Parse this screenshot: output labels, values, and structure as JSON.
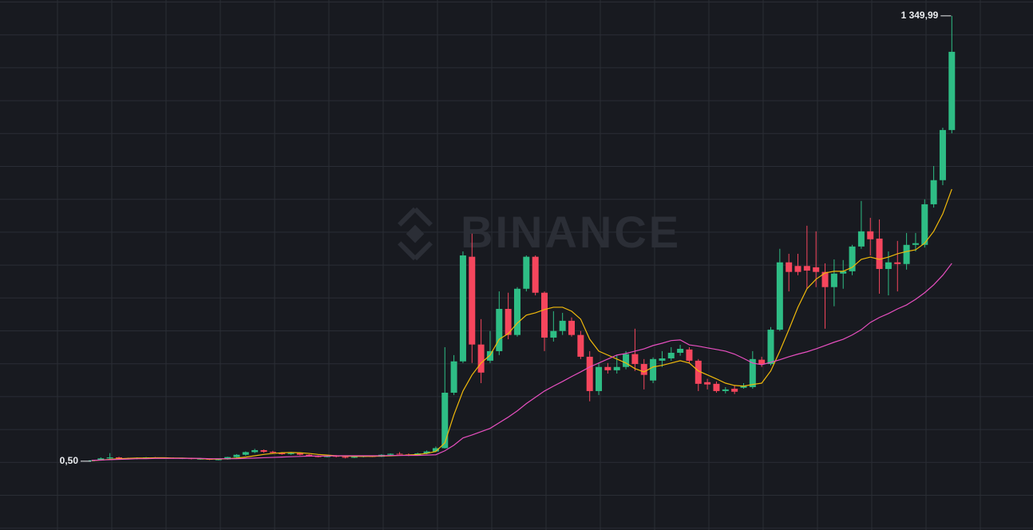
{
  "chart_data": {
    "type": "candlestick",
    "watermark": "BINANCE",
    "open": [
      1,
      3,
      9,
      12,
      9,
      8,
      11,
      12,
      10,
      11,
      9,
      10,
      7,
      8,
      5,
      6,
      13,
      20,
      28,
      34,
      29,
      26,
      22,
      25,
      20,
      16,
      13,
      17,
      14,
      11,
      14,
      16,
      14,
      20,
      23,
      21,
      18,
      24,
      30,
      40,
      208,
      303,
      620,
      354,
      305,
      334,
      462,
      383,
      523,
      620,
      511,
      375,
      395,
      426,
      383,
      317,
      213,
      286,
      276,
      286,
      325,
      295,
      245,
      305,
      312,
      329,
      339,
      305,
      240,
      235,
      213,
      220,
      223,
      225,
      308,
      295,
      399,
      603,
      592,
      592,
      588,
      574,
      528,
      569,
      576,
      651,
      697,
      675,
      583,
      603,
      598,
      656,
      656,
      779,
      852,
      1004
    ],
    "high": [
      4,
      12,
      25,
      14,
      11,
      12,
      13,
      13,
      12,
      12,
      11,
      11,
      9,
      9,
      7,
      14,
      22,
      30,
      38,
      36,
      32,
      28,
      27,
      27,
      22,
      18,
      18,
      19,
      16,
      15,
      17,
      18,
      22,
      24,
      28,
      24,
      26,
      33,
      45,
      346,
      322,
      636,
      690,
      431,
      395,
      515,
      511,
      528,
      624,
      624,
      515,
      455,
      450,
      436,
      395,
      334,
      298,
      298,
      322,
      334,
      402,
      310,
      315,
      334,
      346,
      353,
      346,
      310,
      250,
      242,
      225,
      230,
      237,
      334,
      317,
      407,
      644,
      629,
      629,
      714,
      697,
      600,
      612,
      610,
      656,
      789,
      738,
      733,
      636,
      668,
      692,
      692,
      794,
      895,
      1011,
      1349.99
    ],
    "low": [
      0.5,
      2,
      6,
      7,
      6,
      6,
      8,
      9,
      8,
      8,
      7,
      6,
      5,
      4,
      3,
      5,
      11,
      17,
      25,
      26,
      24,
      20,
      20,
      18,
      14,
      12,
      12,
      12,
      9,
      10,
      12,
      13,
      13,
      18,
      20,
      16,
      17,
      22,
      28,
      39,
      201,
      298,
      298,
      237,
      298,
      322,
      370,
      378,
      515,
      503,
      334,
      363,
      383,
      378,
      310,
      182,
      201,
      266,
      266,
      279,
      274,
      218,
      237,
      286,
      305,
      320,
      298,
      213,
      218,
      208,
      206,
      204,
      220,
      220,
      286,
      291,
      395,
      515,
      564,
      523,
      528,
      402,
      470,
      523,
      564,
      644,
      624,
      508,
      503,
      515,
      581,
      636,
      648,
      769,
      837,
      994
    ],
    "close": [
      3,
      9,
      12,
      9,
      8,
      11,
      12,
      10,
      11,
      9,
      10,
      7,
      8,
      5,
      6,
      13,
      20,
      28,
      34,
      29,
      26,
      22,
      25,
      20,
      16,
      13,
      17,
      14,
      11,
      14,
      16,
      14,
      20,
      23,
      21,
      18,
      24,
      30,
      40,
      208,
      303,
      624,
      354,
      269,
      334,
      462,
      383,
      523,
      620,
      511,
      375,
      395,
      426,
      383,
      317,
      213,
      286,
      276,
      286,
      325,
      295,
      262,
      310,
      312,
      329,
      341,
      305,
      235,
      233,
      213,
      218,
      211,
      230,
      310,
      295,
      399,
      603,
      574,
      574,
      578,
      574,
      528,
      569,
      576,
      651,
      697,
      673,
      583,
      603,
      598,
      656,
      661,
      779,
      852,
      1004,
      1241
    ],
    "up_color": "#2ebd85",
    "down_color": "#f6465d",
    "lines": [
      {
        "color": "#f0b90b",
        "values": [
          2,
          4,
          6,
          8,
          9,
          10,
          10,
          11,
          11,
          10,
          10,
          9,
          8,
          7,
          7,
          8,
          10,
          13,
          17,
          21,
          24,
          26,
          27,
          26,
          24,
          21,
          19,
          17,
          16,
          15,
          15,
          15,
          16,
          17,
          18,
          19,
          21,
          24,
          30,
          56,
          141,
          213,
          262,
          298,
          322,
          370,
          387,
          419,
          443,
          450,
          460,
          467,
          467,
          455,
          431,
          370,
          334,
          322,
          310,
          298,
          281,
          271,
          286,
          291,
          298,
          305,
          298,
          274,
          262,
          250,
          237,
          230,
          228,
          233,
          237,
          274,
          334,
          399,
          467,
          523,
          552,
          571,
          576,
          576,
          588,
          612,
          619,
          612,
          619,
          629,
          636,
          641,
          661,
          697,
          750,
          825
        ]
      },
      {
        "color": "#e84fc0",
        "values": [
          3,
          4,
          5,
          6,
          7,
          8,
          8,
          9,
          9,
          9,
          9,
          9,
          9,
          8,
          8,
          8,
          8,
          9,
          10,
          11,
          12,
          13,
          14,
          15,
          16,
          16,
          16,
          17,
          17,
          17,
          17,
          17,
          17,
          18,
          18,
          18,
          18,
          19,
          20,
          32,
          49,
          71,
          80,
          90,
          100,
          117,
          134,
          153,
          175,
          194,
          213,
          228,
          242,
          257,
          271,
          286,
          298,
          310,
          322,
          327,
          334,
          341,
          351,
          358,
          366,
          368,
          353,
          349,
          344,
          339,
          334,
          325,
          312,
          298,
          293,
          300,
          308,
          317,
          325,
          332,
          341,
          351,
          361,
          370,
          383,
          399,
          421,
          436,
          448,
          462,
          474,
          491,
          511,
          535,
          564,
          600
        ]
      }
    ],
    "annotations": [
      {
        "value": 1349.99,
        "label": "1 349,99"
      },
      {
        "value": 0.5,
        "label": "0,50"
      }
    ],
    "ylim": [
      -208,
      1398
    ],
    "grid": true
  }
}
